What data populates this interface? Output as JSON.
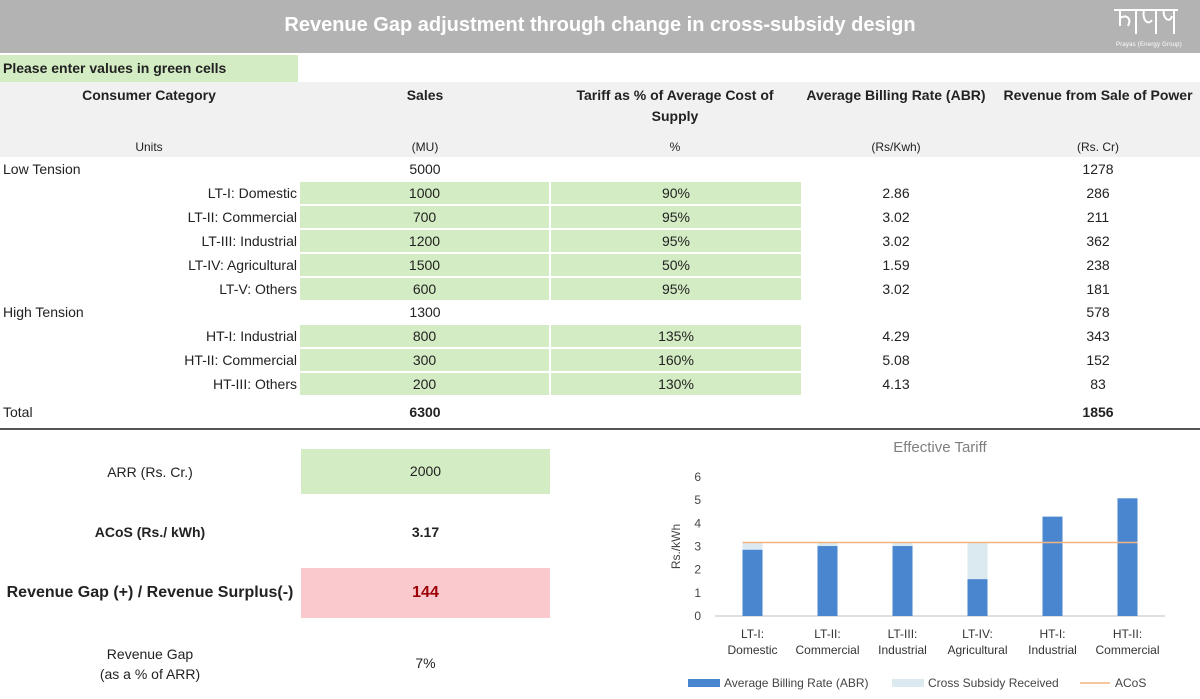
{
  "header": {
    "title": "Revenue Gap adjustment through change in cross-subsidy design",
    "logo_text": "प्रयास",
    "logo_subtext": "Prayas (Energy Group)"
  },
  "note": "Please enter values in green cells",
  "columns": {
    "category": "Consumer Category",
    "sales": "Sales",
    "tariff": "Tariff as % of Average Cost of Supply",
    "abr": "Average Billing Rate (ABR)",
    "revenue": "Revenue from Sale of Power"
  },
  "units": {
    "label": "Units",
    "sales": "(MU)",
    "tariff": "%",
    "abr": "(Rs/Kwh)",
    "revenue": "(Rs. Cr)"
  },
  "groups": [
    {
      "name": "Low Tension",
      "sales": "5000",
      "revenue": "1278"
    },
    {
      "name": "High Tension",
      "sales": "1300",
      "revenue": "578"
    }
  ],
  "rows": [
    {
      "name": "LT-I: Domestic",
      "sales": "1000",
      "tariff": "90%",
      "abr": "2.86",
      "revenue": "286"
    },
    {
      "name": "LT-II: Commercial",
      "sales": "700",
      "tariff": "95%",
      "abr": "3.02",
      "revenue": "211"
    },
    {
      "name": "LT-III: Industrial",
      "sales": "1200",
      "tariff": "95%",
      "abr": "3.02",
      "revenue": "362"
    },
    {
      "name": "LT-IV: Agricultural",
      "sales": "1500",
      "tariff": "50%",
      "abr": "1.59",
      "revenue": "238"
    },
    {
      "name": "LT-V: Others",
      "sales": "600",
      "tariff": "95%",
      "abr": "3.02",
      "revenue": "181"
    },
    {
      "name": "HT-I: Industrial",
      "sales": "800",
      "tariff": "135%",
      "abr": "4.29",
      "revenue": "343"
    },
    {
      "name": "HT-II: Commercial",
      "sales": "300",
      "tariff": "160%",
      "abr": "5.08",
      "revenue": "152"
    },
    {
      "name": "HT-III: Others",
      "sales": "200",
      "tariff": "130%",
      "abr": "4.13",
      "revenue": "83"
    }
  ],
  "total": {
    "label": "Total",
    "sales": "6300",
    "revenue": "1856"
  },
  "summary": {
    "arr_label": "ARR (Rs. Cr.)",
    "arr_value": "2000",
    "acos_label": "ACoS (Rs./ kWh)",
    "acos_value": "3.17",
    "gap_label": "Revenue Gap (+) / Revenue Surplus(-)",
    "gap_value": "144",
    "gap_pct_label_1": "Revenue Gap",
    "gap_pct_label_2": "(as a % of ARR)",
    "gap_pct_value": "7%"
  },
  "colors": {
    "green_cell": "#d4ecc4",
    "pink_cell": "#f9c9ce",
    "gap_text": "#9c0006",
    "abr_bar": "#4a86d0",
    "subsidy_bar": "#dbe9f1",
    "acos_line": "#f3b37e"
  },
  "chart_data": {
    "type": "bar",
    "title": "Effective Tariff",
    "ylabel": "Rs./kWh",
    "ylim": [
      0,
      6
    ],
    "yticks": [
      0,
      1,
      2,
      3,
      4,
      5,
      6
    ],
    "categories": [
      [
        "LT-I:",
        "Domestic"
      ],
      [
        "LT-II:",
        "Commercial"
      ],
      [
        "LT-III:",
        "Industrial"
      ],
      [
        "LT-IV:",
        "Agricultural"
      ],
      [
        "HT-I:",
        "Industrial"
      ],
      [
        "HT-II:",
        "Commercial"
      ]
    ],
    "series": [
      {
        "name": "Average Billing Rate (ABR)",
        "type": "bar",
        "values": [
          2.86,
          3.02,
          3.02,
          1.59,
          4.29,
          5.08
        ]
      },
      {
        "name": "Cross Subsidy Received",
        "type": "stacked-bar",
        "values": [
          0.31,
          0.15,
          0.15,
          1.58,
          0,
          0
        ]
      },
      {
        "name": "ACoS",
        "type": "line",
        "values": [
          3.17,
          3.17,
          3.17,
          3.17,
          3.17,
          3.17
        ]
      }
    ],
    "legend": "bottom",
    "grid": false
  }
}
